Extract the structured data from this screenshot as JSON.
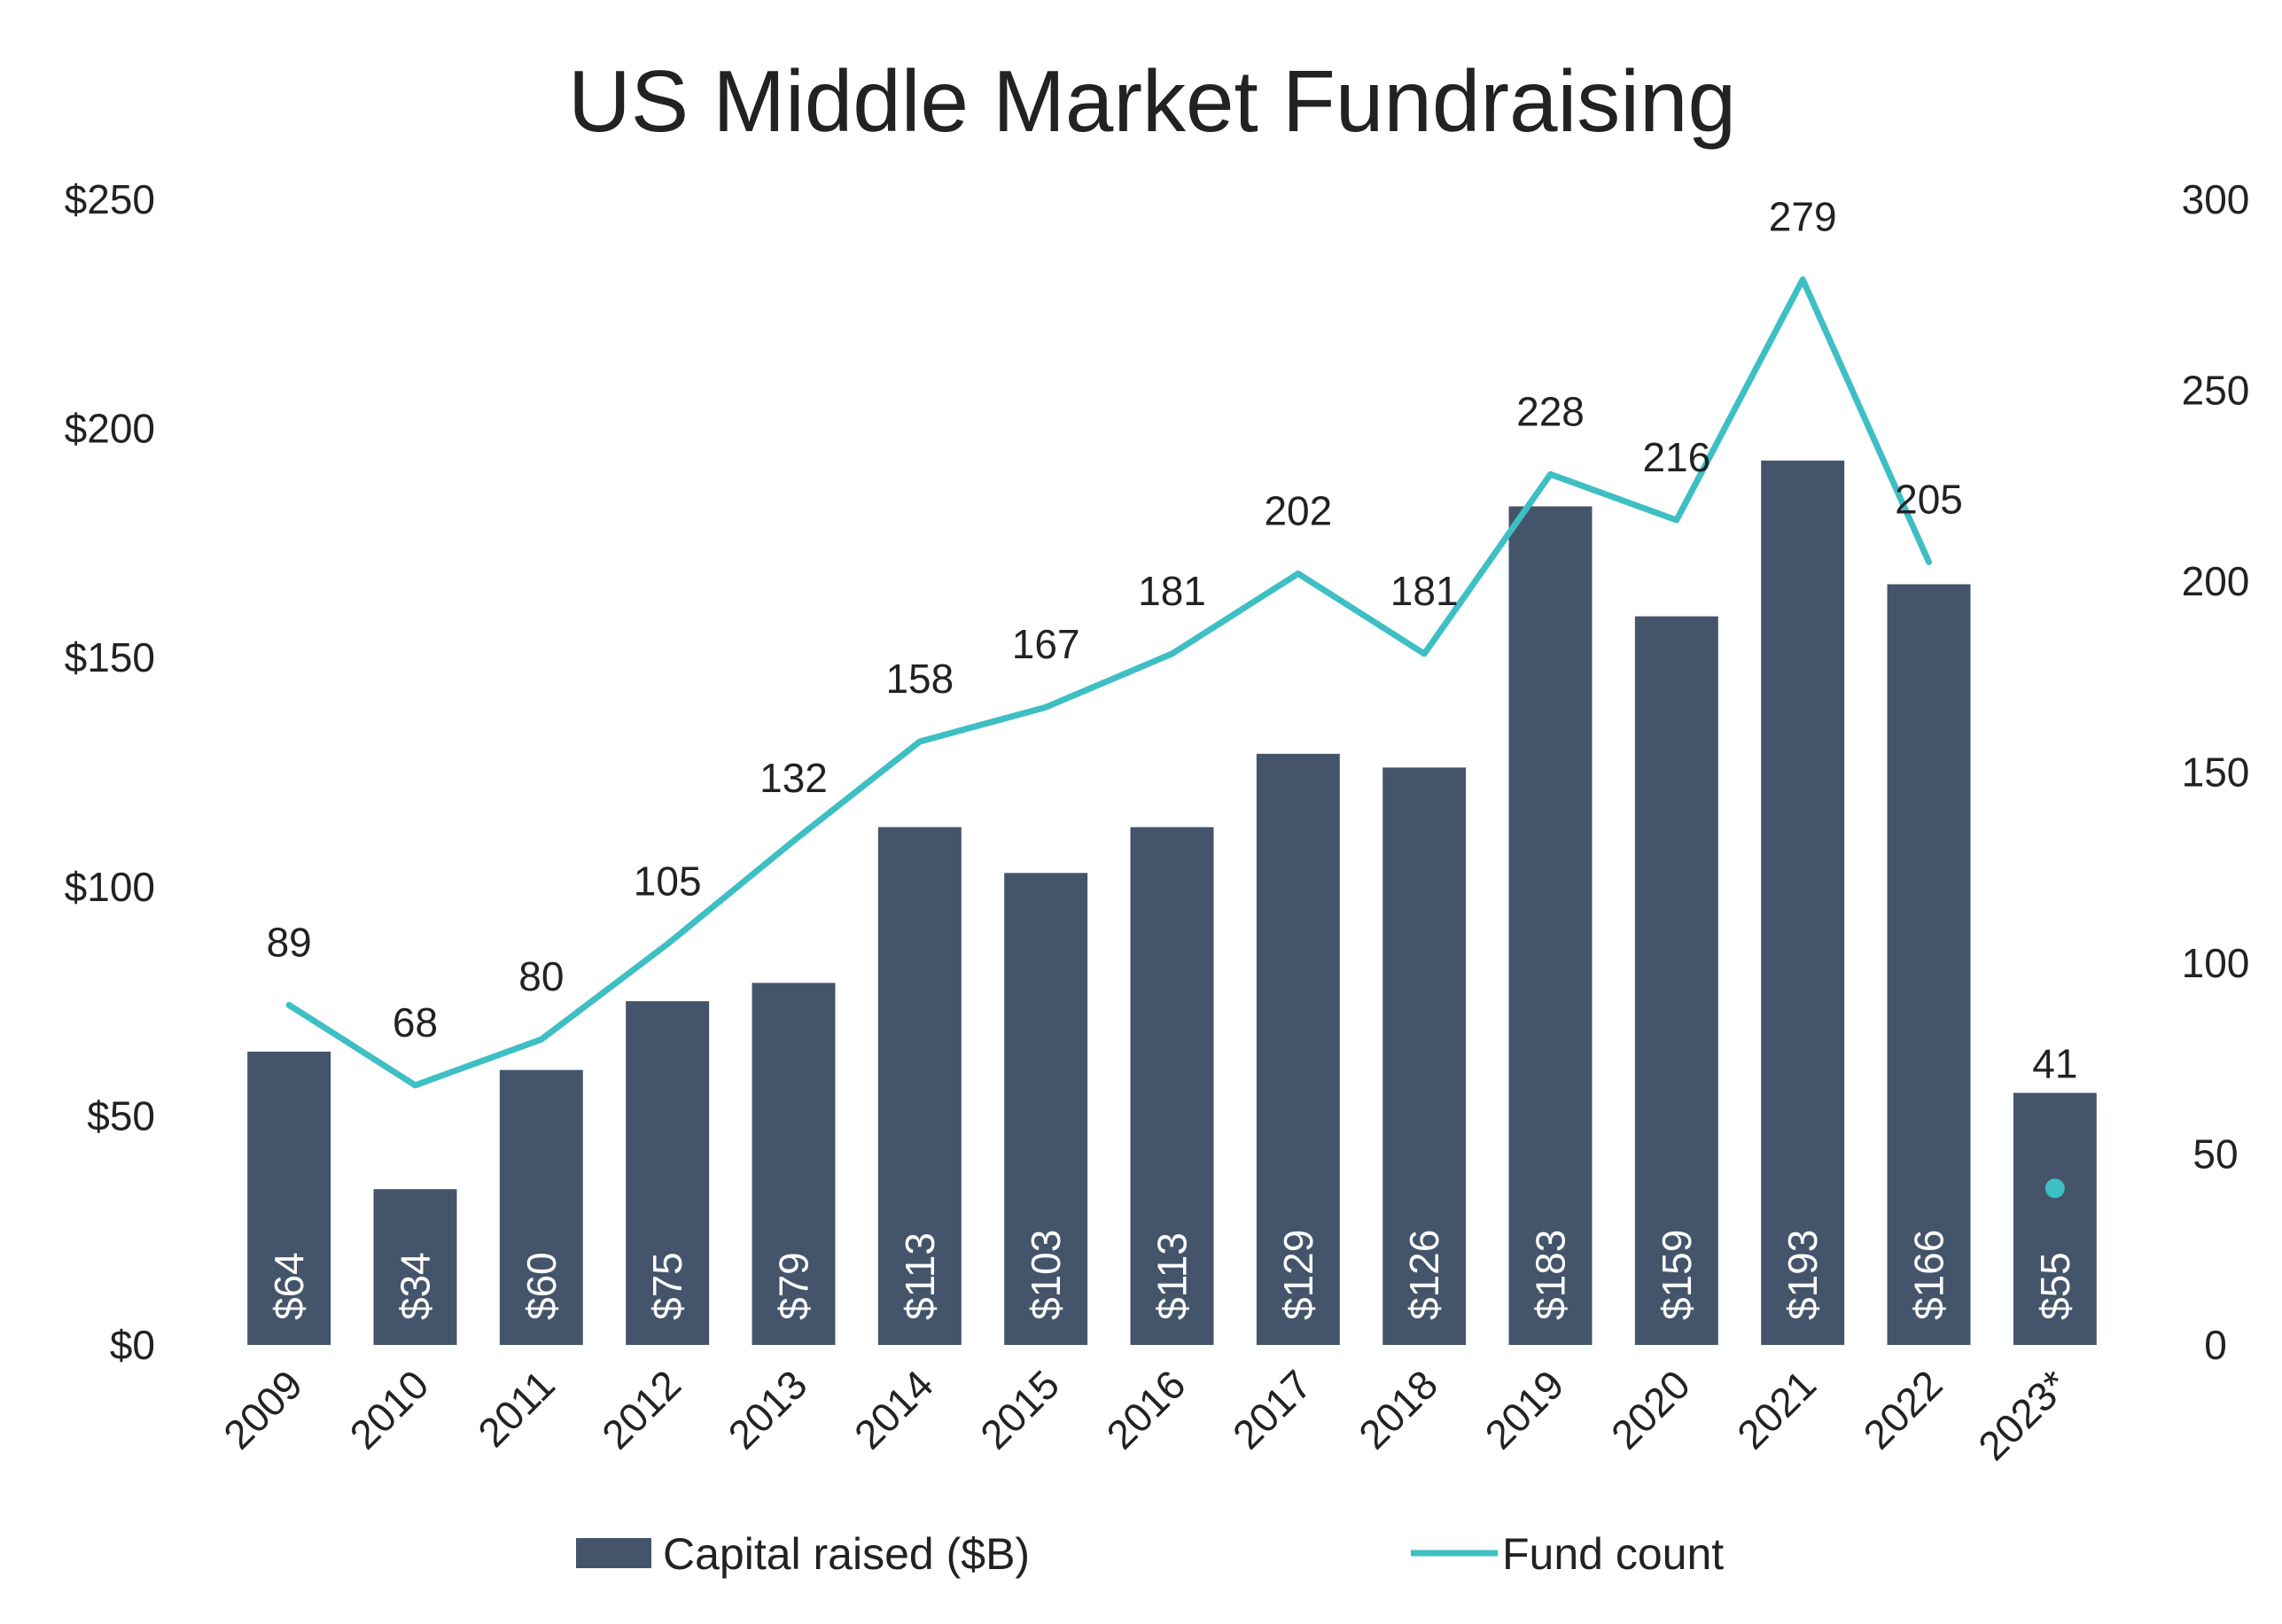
{
  "chart_data": {
    "type": "bar",
    "title": "US Middle Market Fundraising",
    "categories": [
      "2009",
      "2010",
      "2011",
      "2012",
      "2013",
      "2014",
      "2015",
      "2016",
      "2017",
      "2018",
      "2019",
      "2020",
      "2021",
      "2022",
      "2023*"
    ],
    "series": [
      {
        "name": "Capital raised ($B)",
        "type": "bar",
        "axis": "left",
        "values": [
          64,
          34,
          60,
          75,
          79,
          113,
          103,
          113,
          129,
          126,
          183,
          159,
          193,
          166,
          55
        ],
        "data_labels": [
          "$64",
          "$34",
          "$60",
          "$75",
          "$79",
          "$113",
          "$103",
          "$113",
          "$129",
          "$126",
          "$183",
          "$159",
          "$193",
          "$166",
          "$55"
        ],
        "color": "#44546a"
      },
      {
        "name": "Fund count",
        "type": "line",
        "axis": "right",
        "values": [
          89,
          68,
          80,
          105,
          132,
          158,
          167,
          181,
          202,
          181,
          228,
          216,
          279,
          205,
          41
        ],
        "data_labels": [
          "89",
          "68",
          "80",
          "105",
          "132",
          "158",
          "167",
          "181",
          "202",
          "181",
          "228",
          "216",
          "279",
          "205",
          "41"
        ],
        "line_break_before_index": 14,
        "color": "#3dbfc4"
      }
    ],
    "y_left": {
      "ylim": [
        0,
        250
      ],
      "ticks": [
        "$0",
        "$50",
        "$100",
        "$150",
        "$200",
        "$250"
      ]
    },
    "y_right": {
      "ylim": [
        0,
        300
      ],
      "ticks": [
        "0",
        "50",
        "100",
        "150",
        "200",
        "250",
        "300"
      ]
    },
    "grid": false,
    "legend_position": "bottom"
  }
}
